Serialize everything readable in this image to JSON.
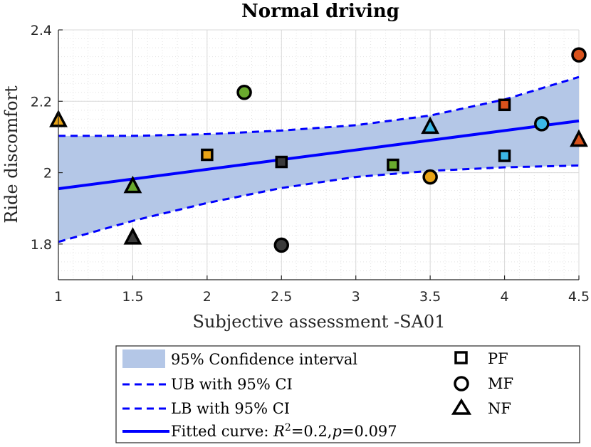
{
  "chart_data": {
    "type": "scatter",
    "title": "Normal driving",
    "xlabel": "Subjective assessment -SA01",
    "ylabel": "Ride discomfort",
    "xlim": [
      1,
      4.5
    ],
    "ylim": [
      1.7,
      2.4
    ],
    "xticks": [
      1,
      1.5,
      2,
      2.5,
      3,
      3.5,
      4,
      4.5
    ],
    "xtick_labels": [
      "1",
      "1.5",
      "2",
      "2.5",
      "3",
      "3.5",
      "4",
      "4.5"
    ],
    "yticks": [
      1.8,
      2.0,
      2.2,
      2.4
    ],
    "ytick_labels": [
      "1.8",
      "2",
      "2.2",
      "2.4"
    ],
    "grid": true,
    "minor_grid": true,
    "fit": {
      "x": [
        1,
        4.5
      ],
      "y": [
        1.955,
        2.145
      ]
    },
    "upper_bound": {
      "x": [
        1,
        1.5,
        2,
        2.5,
        3,
        3.5,
        4,
        4.5
      ],
      "y": [
        2.103,
        2.103,
        2.108,
        2.118,
        2.133,
        2.16,
        2.205,
        2.268
      ]
    },
    "lower_bound": {
      "x": [
        1,
        1.5,
        2,
        2.5,
        3,
        3.5,
        4,
        4.5
      ],
      "y": [
        1.806,
        1.865,
        1.915,
        1.957,
        1.988,
        2.005,
        2.015,
        2.02
      ]
    },
    "series": [
      {
        "name": "PF",
        "marker": "square",
        "points": [
          {
            "x": 2.0,
            "y": 2.05,
            "color": "#e8a317"
          },
          {
            "x": 2.5,
            "y": 2.03,
            "color": "#3a3a3a"
          },
          {
            "x": 3.25,
            "y": 2.022,
            "color": "#6aaa2e"
          },
          {
            "x": 4.0,
            "y": 2.19,
            "color": "#d9521c"
          },
          {
            "x": 4.0,
            "y": 2.047,
            "color": "#3cb8e6"
          }
        ]
      },
      {
        "name": "MF",
        "marker": "circle",
        "points": [
          {
            "x": 2.25,
            "y": 2.225,
            "color": "#6aaa2e"
          },
          {
            "x": 2.5,
            "y": 1.797,
            "color": "#3a3a3a"
          },
          {
            "x": 3.5,
            "y": 1.988,
            "color": "#e8a317"
          },
          {
            "x": 4.25,
            "y": 2.137,
            "color": "#3cb8e6"
          },
          {
            "x": 4.5,
            "y": 2.33,
            "color": "#d9521c"
          }
        ]
      },
      {
        "name": "NF",
        "marker": "triangle",
        "points": [
          {
            "x": 1.0,
            "y": 2.147,
            "color": "#e8a317"
          },
          {
            "x": 1.5,
            "y": 1.962,
            "color": "#6aaa2e"
          },
          {
            "x": 1.5,
            "y": 1.818,
            "color": "#3a3a3a"
          },
          {
            "x": 3.5,
            "y": 2.128,
            "color": "#3cb8e6"
          },
          {
            "x": 4.5,
            "y": 2.092,
            "color": "#d9521c"
          }
        ]
      }
    ],
    "legend": {
      "location": "bottom-center",
      "ci_label": "95% Confidence interval",
      "ub_label": "UB with 95% CI",
      "lb_label": "LB with 95% CI",
      "fit_label_prefix": "Fitted curve: ",
      "fit_r_symbol": "R",
      "fit_r_power": "2",
      "fit_r_value": "=0.2,",
      "fit_p_symbol": "p",
      "fit_p_value": "=0.097",
      "marker_labels": [
        "PF",
        "MF",
        "NF"
      ]
    },
    "colors": {
      "ci_fill": "#b4c7e7",
      "line": "#0000ff",
      "grid": "#d9d9d9",
      "axis": "#262626"
    }
  }
}
